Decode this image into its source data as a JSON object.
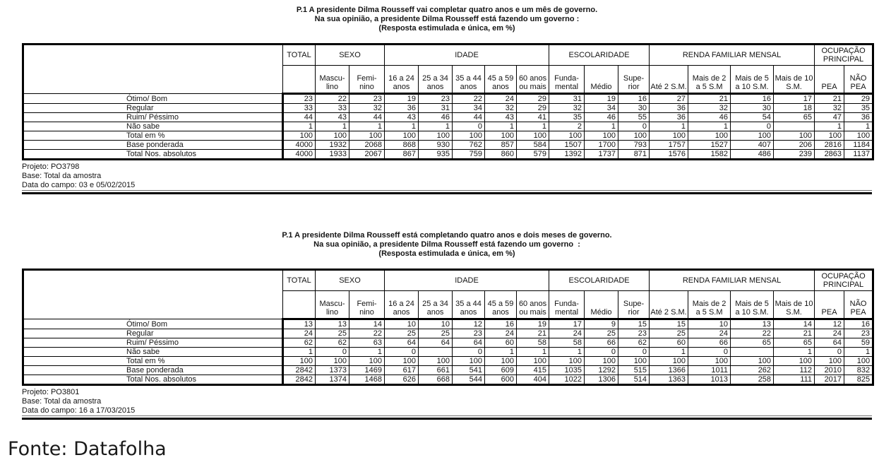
{
  "header": {
    "total_label": "TOTAL",
    "groups": [
      {
        "label": "SEXO",
        "span": 2
      },
      {
        "label": "IDADE",
        "span": 5
      },
      {
        "label": "ESCOLARIDADE",
        "span": 3
      },
      {
        "label": "RENDA FAMILIAR MENSAL",
        "span": 4
      },
      {
        "label": "OCUPAÇÃO\nPRINCIPAL",
        "span": 2
      }
    ],
    "subcols": [
      "Mascu-\nlino",
      "Femi-\nnino",
      "16 a 24\nanos",
      "25 a 34\nanos",
      "35 a 44\nanos",
      "45 a 59\nanos",
      "60 anos\nou mais",
      "Funda-\nmental",
      "Médio",
      "Supe-\nrior",
      "Até 2 S.M.",
      "Mais de 2\na 5 S.M",
      "Mais de 5\na 10 S.M.",
      "Mais de 10\nS.M.",
      "PEA",
      "NÃO\nPEA"
    ]
  },
  "reports": [
    {
      "title_lines": [
        "P.1 A presidente Dilma Rousseff vai completar quatro anos e um mês de governo.",
        "Na sua opinião, a presidente Dilma Rousseff está fazendo um governo :",
        "(Resposta estimulada e única, em %)"
      ],
      "rows": [
        {
          "label": "Ótimo/ Bom",
          "values": [
            "23",
            "22",
            "23",
            "19",
            "23",
            "22",
            "24",
            "29",
            "31",
            "19",
            "16",
            "27",
            "21",
            "16",
            "17",
            "21",
            "29"
          ]
        },
        {
          "label": "Regular",
          "values": [
            "33",
            "33",
            "32",
            "36",
            "31",
            "34",
            "32",
            "29",
            "32",
            "34",
            "30",
            "36",
            "32",
            "30",
            "18",
            "32",
            "35"
          ]
        },
        {
          "label": "Ruim/ Péssimo",
          "values": [
            "44",
            "43",
            "44",
            "43",
            "46",
            "44",
            "43",
            "41",
            "35",
            "46",
            "55",
            "36",
            "46",
            "54",
            "65",
            "47",
            "36"
          ]
        },
        {
          "label": "Não sabe",
          "values": [
            "1",
            "1",
            "1",
            "1",
            "1",
            "0",
            "1",
            "1",
            "2",
            "1",
            "0",
            "1",
            "1",
            "0",
            "",
            "1",
            "1"
          ]
        },
        {
          "label": "Total em %",
          "values": [
            "100",
            "100",
            "100",
            "100",
            "100",
            "100",
            "100",
            "100",
            "100",
            "100",
            "100",
            "100",
            "100",
            "100",
            "100",
            "100",
            "100"
          ]
        },
        {
          "label": "Base ponderada",
          "values": [
            "4000",
            "1932",
            "2068",
            "868",
            "930",
            "762",
            "857",
            "584",
            "1507",
            "1700",
            "793",
            "1757",
            "1527",
            "407",
            "206",
            "2816",
            "1184"
          ]
        },
        {
          "label": "Total Nos. absolutos",
          "values": [
            "4000",
            "1933",
            "2067",
            "867",
            "935",
            "759",
            "860",
            "579",
            "1392",
            "1737",
            "871",
            "1576",
            "1582",
            "486",
            "239",
            "2863",
            "1137"
          ]
        }
      ],
      "footer_lines": [
        "Projeto: PO3798",
        "Base: Total da amostra",
        "Data do campo: 03 e 05/02/2015"
      ]
    },
    {
      "title_lines": [
        "P.1 A presidente Dilma Rousseff está completando quatro anos e dois meses de governo.",
        "Na sua opinião, a presidente Dilma Rousseff está fazendo um governo  :",
        "(Resposta estimulada e única, em %)"
      ],
      "rows": [
        {
          "label": "Ótimo/ Bom",
          "values": [
            "13",
            "13",
            "14",
            "10",
            "10",
            "12",
            "16",
            "19",
            "17",
            "9",
            "15",
            "15",
            "10",
            "13",
            "14",
            "12",
            "16"
          ]
        },
        {
          "label": "Regular",
          "values": [
            "24",
            "25",
            "22",
            "25",
            "25",
            "23",
            "24",
            "21",
            "24",
            "25",
            "23",
            "25",
            "24",
            "22",
            "21",
            "24",
            "23"
          ]
        },
        {
          "label": "Ruim/ Péssimo",
          "values": [
            "62",
            "62",
            "63",
            "64",
            "64",
            "64",
            "60",
            "58",
            "58",
            "66",
            "62",
            "60",
            "66",
            "65",
            "65",
            "64",
            "59"
          ]
        },
        {
          "label": "Não sabe",
          "values": [
            "1",
            "0",
            "1",
            "0",
            "",
            "0",
            "1",
            "1",
            "1",
            "0",
            "0",
            "1",
            "0",
            "",
            "1",
            "0",
            "1"
          ]
        },
        {
          "label": "Total em %",
          "values": [
            "100",
            "100",
            "100",
            "100",
            "100",
            "100",
            "100",
            "100",
            "100",
            "100",
            "100",
            "100",
            "100",
            "100",
            "100",
            "100",
            "100"
          ]
        },
        {
          "label": "Base ponderada",
          "values": [
            "2842",
            "1373",
            "1469",
            "617",
            "661",
            "541",
            "609",
            "415",
            "1035",
            "1292",
            "515",
            "1366",
            "1011",
            "262",
            "112",
            "2010",
            "832"
          ]
        },
        {
          "label": "Total Nos. absolutos",
          "values": [
            "2842",
            "1374",
            "1468",
            "626",
            "668",
            "544",
            "600",
            "404",
            "1022",
            "1306",
            "514",
            "1363",
            "1013",
            "258",
            "111",
            "2017",
            "825"
          ]
        }
      ],
      "footer_lines": [
        "Projeto: PO3801",
        "Base: Total da amostra",
        "Data do campo: 16 a 17/03/2015"
      ]
    }
  ],
  "fonte": "Fonte: Datafolha"
}
